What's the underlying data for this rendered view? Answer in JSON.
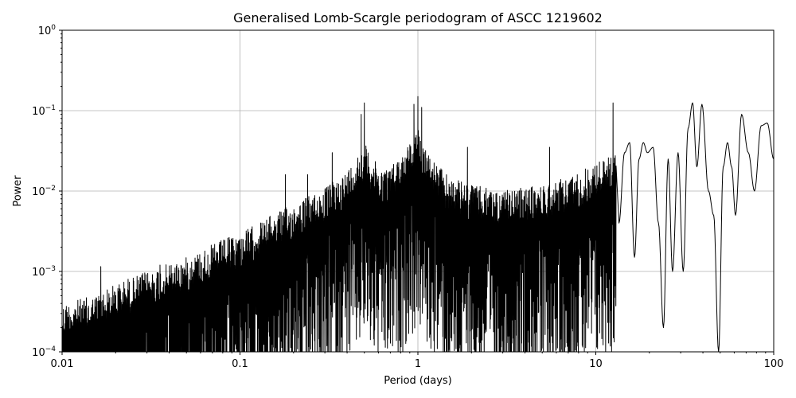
{
  "chart_data": {
    "type": "line",
    "title": "Generalised Lomb-Scargle periodogram of ASCC 1219602",
    "xlabel": "Period (days)",
    "ylabel": "Power",
    "xscale": "log",
    "yscale": "log",
    "xlim": [
      0.01,
      100
    ],
    "ylim": [
      0.0001,
      1
    ],
    "grid": true,
    "x_ticks": [
      {
        "value": 0.01,
        "label": "0.01"
      },
      {
        "value": 0.1,
        "label": "0.1"
      },
      {
        "value": 1,
        "label": "1"
      },
      {
        "value": 10,
        "label": "10"
      },
      {
        "value": 100,
        "label": "100"
      }
    ],
    "y_ticks": [
      {
        "value": 0.0001,
        "base": "10",
        "exp": "−4"
      },
      {
        "value": 0.001,
        "base": "10",
        "exp": "−3"
      },
      {
        "value": 0.01,
        "base": "10",
        "exp": "−2"
      },
      {
        "value": 0.1,
        "base": "10",
        "exp": "−1"
      },
      {
        "value": 1,
        "base": "10",
        "exp": "0"
      }
    ],
    "line_color": "#000000",
    "envelope": [
      [
        0.01,
        0.0004
      ],
      [
        0.015,
        0.0005
      ],
      [
        0.02,
        0.0007
      ],
      [
        0.03,
        0.001
      ],
      [
        0.05,
        0.0015
      ],
      [
        0.08,
        0.0025
      ],
      [
        0.1,
        0.003
      ],
      [
        0.15,
        0.005
      ],
      [
        0.2,
        0.007
      ],
      [
        0.25,
        0.009
      ],
      [
        0.3,
        0.011
      ],
      [
        0.4,
        0.018
      ],
      [
        0.5,
        0.04
      ],
      [
        0.6,
        0.02
      ],
      [
        0.7,
        0.02
      ],
      [
        0.9,
        0.04
      ],
      [
        1,
        0.06
      ],
      [
        1.2,
        0.025
      ],
      [
        1.5,
        0.015
      ],
      [
        2,
        0.012
      ],
      [
        3,
        0.01
      ],
      [
        5,
        0.012
      ],
      [
        7,
        0.015
      ],
      [
        9,
        0.02
      ],
      [
        11,
        0.025
      ],
      [
        13,
        0.03
      ]
    ],
    "peaks": [
      {
        "period": 0.0165,
        "power": 0.00115
      },
      {
        "period": 0.0235,
        "power": 0.0008
      },
      {
        "period": 0.0355,
        "power": 0.0012
      },
      {
        "period": 0.07,
        "power": 0.0018
      },
      {
        "period": 0.17,
        "power": 0.0055
      },
      {
        "period": 0.18,
        "power": 0.016
      },
      {
        "period": 0.24,
        "power": 0.016
      },
      {
        "period": 0.33,
        "power": 0.03
      },
      {
        "period": 0.48,
        "power": 0.09
      },
      {
        "period": 0.5,
        "power": 0.125
      },
      {
        "period": 0.95,
        "power": 0.12
      },
      {
        "period": 1.0,
        "power": 0.15
      },
      {
        "period": 1.05,
        "power": 0.11
      },
      {
        "period": 1.9,
        "power": 0.035
      },
      {
        "period": 5.5,
        "power": 0.035
      },
      {
        "period": 12.5,
        "power": 0.125
      }
    ],
    "long_period_curve": [
      [
        13.5,
        0.004
      ],
      [
        14.5,
        0.03
      ],
      [
        15.5,
        0.04
      ],
      [
        16.5,
        0.0015
      ],
      [
        17.5,
        0.025
      ],
      [
        18.5,
        0.04
      ],
      [
        19.5,
        0.03
      ],
      [
        21,
        0.035
      ],
      [
        22.5,
        0.004
      ],
      [
        24,
        0.0002
      ],
      [
        25.5,
        0.025
      ],
      [
        27,
        0.001
      ],
      [
        29,
        0.03
      ],
      [
        31,
        0.001
      ],
      [
        33,
        0.06
      ],
      [
        35,
        0.125
      ],
      [
        37,
        0.02
      ],
      [
        39.5,
        0.12
      ],
      [
        43,
        0.01
      ],
      [
        46,
        0.005
      ],
      [
        49,
        0.0001
      ],
      [
        52,
        0.02
      ],
      [
        55,
        0.04
      ],
      [
        58,
        0.02
      ],
      [
        61,
        0.005
      ],
      [
        66,
        0.09
      ],
      [
        72,
        0.03
      ],
      [
        78,
        0.01
      ],
      [
        85,
        0.065
      ],
      [
        92,
        0.07
      ],
      [
        100,
        0.025
      ]
    ]
  }
}
